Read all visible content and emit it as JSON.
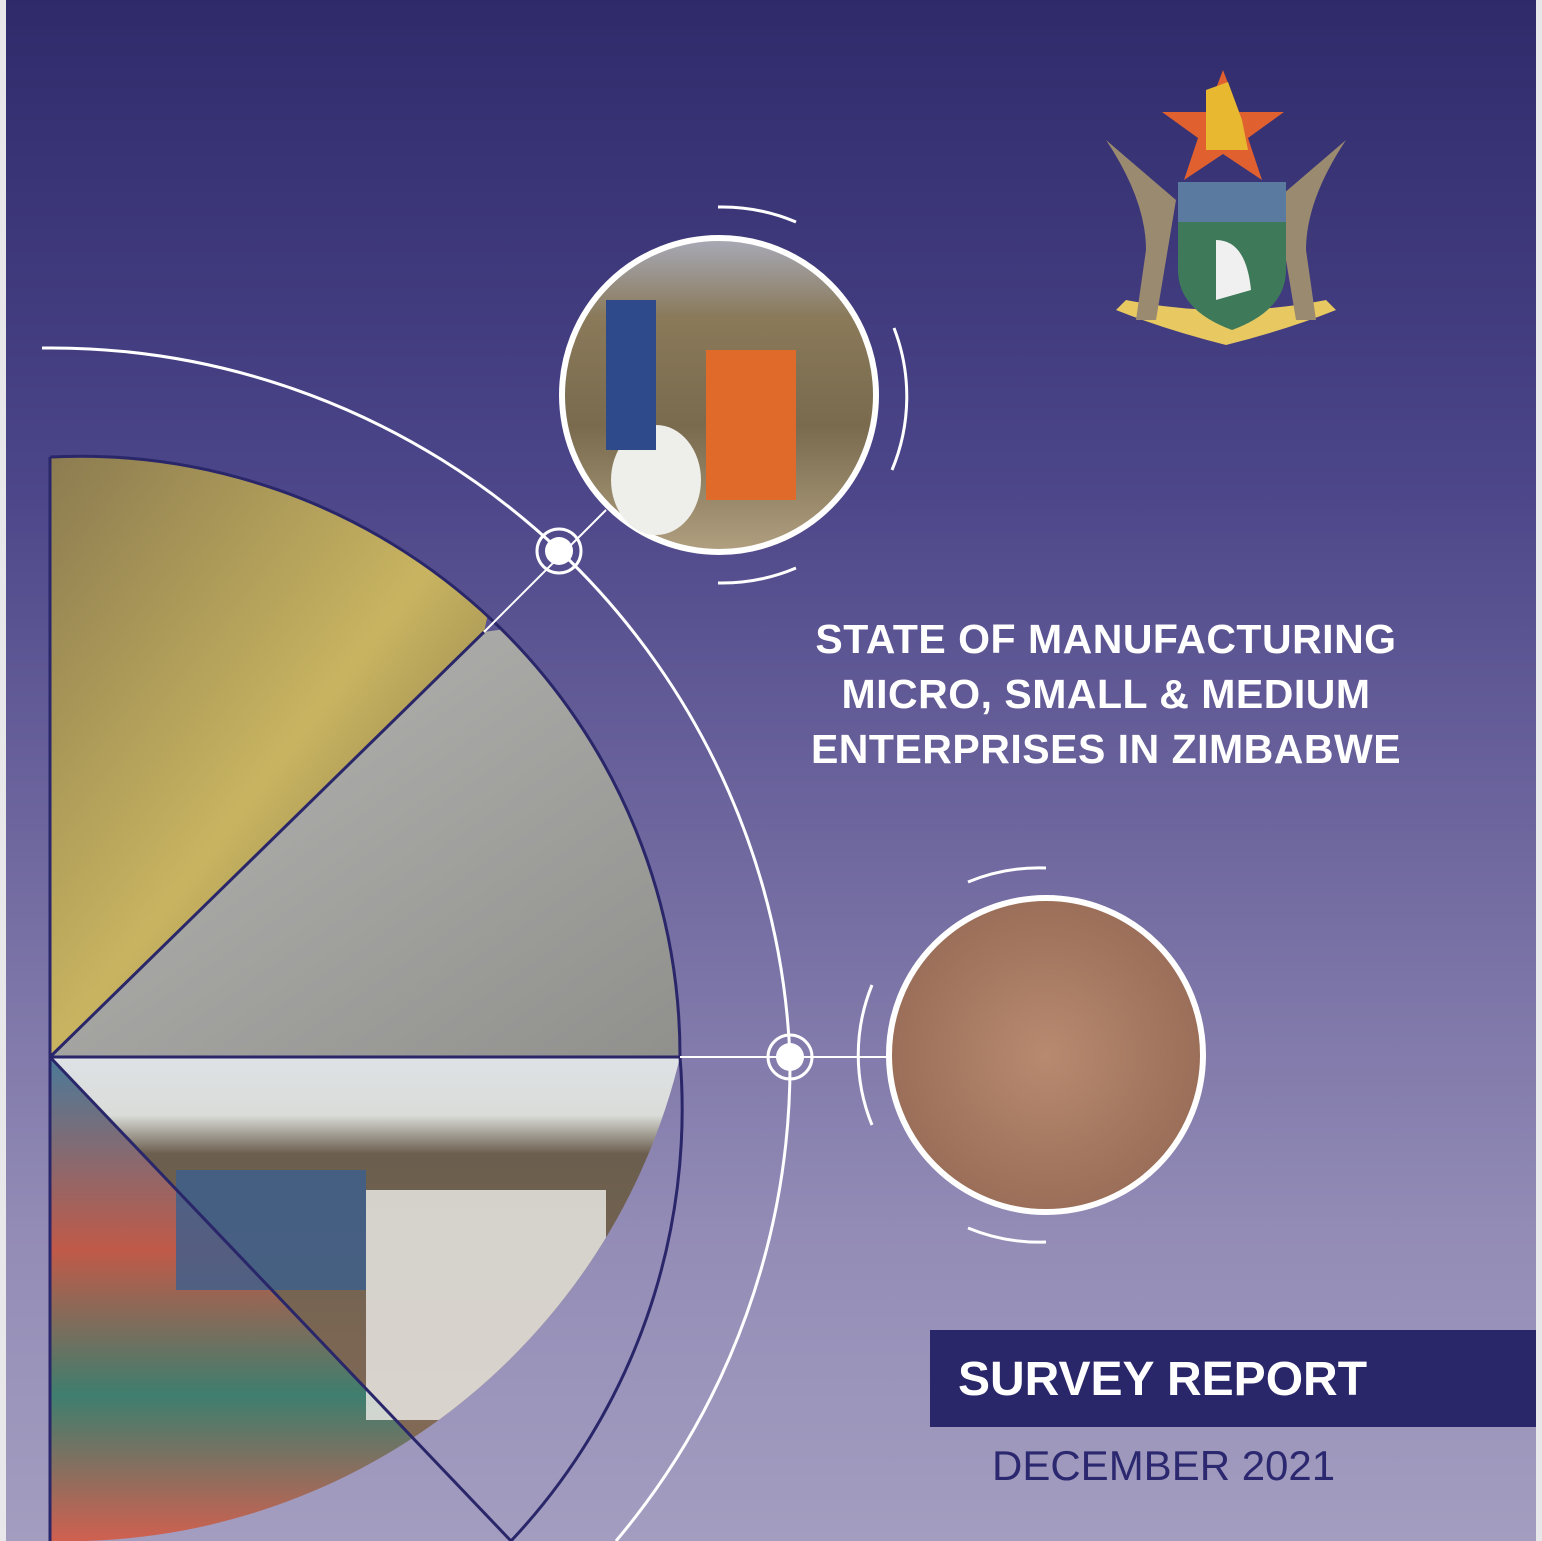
{
  "cover": {
    "title_lines": [
      "STATE OF MANUFACTURING",
      "MICRO, SMALL & MEDIUM",
      "ENTERPRISES IN ZIMBABWE"
    ],
    "report_type": "SURVEY REPORT",
    "date": "DECEMBER 2021"
  },
  "emblem": {
    "name": "zimbabwe-coat-of-arms-icon"
  },
  "photos": [
    "grinding-mill-photo",
    "pottery-photo",
    "jars-photo",
    "paving-bricks-photo",
    "cabinets-photo",
    "water-tanks-photo"
  ],
  "colors": {
    "background_top": "#2f2b6b",
    "background_bottom": "#a39dc0",
    "banner": "#2a266a",
    "date_text": "#2c2870"
  }
}
